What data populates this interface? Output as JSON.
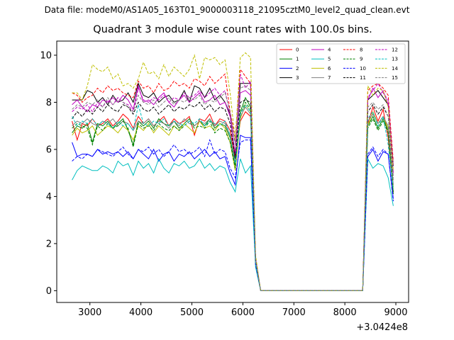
{
  "file_title": "Data file: modeM0/AS1A05_163T01_9000003118_21095cztM0_level2_quad_clean.evt",
  "chart_data": {
    "type": "line",
    "title": "Quadrant 3 module wise count rates with 100.0s bins.",
    "xlabel": "",
    "ylabel": "",
    "x_offset_label": "+3.0424e8",
    "xlim": [
      2350,
      9250
    ],
    "ylim": [
      -0.5,
      10.6
    ],
    "xticks": [
      3000,
      4000,
      5000,
      6000,
      7000,
      8000,
      9000
    ],
    "yticks": [
      0,
      2,
      4,
      6,
      8,
      10
    ],
    "legend_position": "top-right",
    "legend_columns": 4,
    "x": [
      2650,
      2750,
      2850,
      2950,
      3050,
      3150,
      3250,
      3350,
      3450,
      3550,
      3650,
      3750,
      3850,
      3950,
      4050,
      4150,
      4250,
      4350,
      4450,
      4550,
      4650,
      4750,
      4850,
      4950,
      5050,
      5150,
      5250,
      5350,
      5450,
      5550,
      5650,
      5750,
      5850,
      5950,
      6050,
      6150,
      6250,
      6350,
      6450,
      6550,
      6650,
      6750,
      6850,
      6950,
      7050,
      7150,
      7250,
      7350,
      7450,
      7550,
      7650,
      7750,
      7850,
      7950,
      8050,
      8150,
      8250,
      8350,
      8450,
      8550,
      8650,
      8750,
      8850,
      8950
    ],
    "series": [
      {
        "name": "0",
        "color": "#ff0000",
        "dash": "solid",
        "values": [
          7.2,
          6.4,
          7.1,
          7.0,
          7.3,
          7.0,
          7.1,
          7.3,
          7.0,
          7.2,
          7.5,
          7.3,
          6.9,
          7.4,
          7.1,
          7.3,
          7.0,
          7.2,
          7.4,
          7.0,
          7.3,
          7.1,
          7.2,
          7.4,
          6.6,
          7.3,
          7.2,
          7.5,
          7.0,
          7.3,
          7.2,
          6.8,
          5.6,
          7.2,
          7.6,
          7.4,
          1.3,
          0,
          0,
          0,
          0,
          0,
          0,
          0,
          0,
          0,
          0,
          0,
          0,
          0,
          0,
          0,
          0,
          0,
          0,
          0,
          0,
          0,
          7.1,
          7.8,
          7.2,
          7.7,
          6.5,
          4.2
        ]
      },
      {
        "name": "1",
        "color": "#008000",
        "dash": "solid",
        "values": [
          6.7,
          7.0,
          6.9,
          7.1,
          6.3,
          7.1,
          7.0,
          7.2,
          6.9,
          7.1,
          7.3,
          6.8,
          6.2,
          7.2,
          7.0,
          7.2,
          6.9,
          7.3,
          7.1,
          7.0,
          7.2,
          6.9,
          7.1,
          7.3,
          7.0,
          7.2,
          7.0,
          7.3,
          6.9,
          7.1,
          7.0,
          6.5,
          5.3,
          7.6,
          8.2,
          7.8,
          1.2,
          0,
          0,
          0,
          0,
          0,
          0,
          0,
          0,
          0,
          0,
          0,
          0,
          0,
          0,
          0,
          0,
          0,
          0,
          0,
          0,
          0,
          7.0,
          7.4,
          6.9,
          7.3,
          6.8,
          4.1
        ]
      },
      {
        "name": "2",
        "color": "#0000ff",
        "dash": "solid",
        "values": [
          6.3,
          5.7,
          5.8,
          5.8,
          5.7,
          6.0,
          5.8,
          5.9,
          5.8,
          5.9,
          5.7,
          5.9,
          5.6,
          6.0,
          5.8,
          5.6,
          6.0,
          5.5,
          5.8,
          5.9,
          5.5,
          5.8,
          5.7,
          5.9,
          5.6,
          5.8,
          6.0,
          5.7,
          5.9,
          5.6,
          5.7,
          5.0,
          4.5,
          6.6,
          6.5,
          6.5,
          1.1,
          0,
          0,
          0,
          0,
          0,
          0,
          0,
          0,
          0,
          0,
          0,
          0,
          0,
          0,
          0,
          0,
          0,
          0,
          0,
          0,
          0,
          5.7,
          6.0,
          5.5,
          5.9,
          5.8,
          3.9
        ]
      },
      {
        "name": "3",
        "color": "#000000",
        "dash": "solid",
        "values": [
          8.1,
          8.1,
          8.1,
          8.5,
          8.4,
          8.0,
          8.2,
          7.9,
          8.3,
          8.0,
          8.1,
          8.4,
          8.0,
          8.8,
          8.3,
          8.2,
          8.4,
          8.0,
          8.2,
          8.3,
          8.0,
          8.1,
          8.5,
          8.0,
          8.7,
          8.6,
          8.2,
          8.6,
          8.1,
          8.3,
          8.0,
          7.5,
          5.7,
          8.8,
          8.8,
          8.8,
          1.3,
          0,
          0,
          0,
          0,
          0,
          0,
          0,
          0,
          0,
          0,
          0,
          0,
          0,
          0,
          0,
          0,
          0,
          0,
          0,
          0,
          0,
          8.1,
          8.3,
          8.5,
          8.2,
          7.9,
          5.3
        ]
      },
      {
        "name": "4",
        "color": "#bf00bf",
        "dash": "solid",
        "values": [
          7.9,
          8.1,
          7.8,
          7.6,
          7.9,
          7.8,
          8.1,
          8.0,
          8.2,
          8.0,
          8.3,
          8.1,
          7.7,
          8.7,
          8.0,
          8.1,
          7.9,
          8.2,
          8.4,
          8.0,
          7.8,
          8.1,
          8.3,
          8.0,
          8.2,
          8.4,
          8.0,
          8.1,
          8.3,
          7.9,
          8.0,
          7.4,
          5.8,
          8.4,
          8.5,
          8.3,
          1.3,
          0,
          0,
          0,
          0,
          0,
          0,
          0,
          0,
          0,
          0,
          0,
          0,
          0,
          0,
          0,
          0,
          0,
          0,
          0,
          0,
          0,
          8.1,
          8.6,
          8.2,
          8.5,
          7.9,
          5.0
        ]
      },
      {
        "name": "5",
        "color": "#00bfbf",
        "dash": "solid",
        "values": [
          4.7,
          5.1,
          5.3,
          5.2,
          5.1,
          5.1,
          5.3,
          5.2,
          5.0,
          5.5,
          5.3,
          5.4,
          4.9,
          5.5,
          5.2,
          5.4,
          5.0,
          5.6,
          5.2,
          5.0,
          5.4,
          5.3,
          5.5,
          5.2,
          5.3,
          5.6,
          5.2,
          5.4,
          5.1,
          5.3,
          5.2,
          4.6,
          4.2,
          5.6,
          5.0,
          5.3,
          1.0,
          0,
          0,
          0,
          0,
          0,
          0,
          0,
          0,
          0,
          0,
          0,
          0,
          0,
          0,
          0,
          0,
          0,
          0,
          0,
          0,
          0,
          5.6,
          5.2,
          5.4,
          5.3,
          4.8,
          3.6
        ]
      },
      {
        "name": "6",
        "color": "#bfbf00",
        "dash": "solid",
        "values": [
          6.6,
          6.9,
          6.7,
          6.8,
          7.0,
          6.6,
          6.8,
          7.0,
          6.9,
          6.7,
          7.0,
          6.8,
          6.4,
          7.0,
          6.8,
          7.1,
          6.7,
          7.0,
          6.8,
          6.6,
          7.0,
          6.8,
          7.1,
          6.9,
          6.7,
          7.2,
          6.9,
          7.0,
          6.8,
          7.1,
          6.9,
          6.3,
          5.1,
          7.3,
          7.9,
          7.6,
          1.2,
          0,
          0,
          0,
          0,
          0,
          0,
          0,
          0,
          0,
          0,
          0,
          0,
          0,
          0,
          0,
          0,
          0,
          0,
          0,
          0,
          0,
          7.0,
          7.6,
          7.1,
          7.4,
          6.9,
          4.4
        ]
      },
      {
        "name": "7",
        "color": "#808080",
        "dash": "solid",
        "values": [
          7.0,
          7.2,
          7.1,
          7.3,
          7.1,
          7.0,
          7.2,
          7.1,
          7.3,
          7.0,
          7.2,
          7.1,
          6.8,
          7.2,
          7.1,
          7.3,
          7.0,
          7.2,
          7.1,
          6.9,
          7.2,
          7.0,
          7.3,
          7.1,
          7.0,
          7.2,
          7.1,
          7.3,
          7.0,
          7.2,
          7.1,
          6.6,
          5.4,
          7.4,
          7.8,
          7.5,
          1.2,
          0,
          0,
          0,
          0,
          0,
          0,
          0,
          0,
          0,
          0,
          0,
          0,
          0,
          0,
          0,
          0,
          0,
          0,
          0,
          0,
          0,
          7.2,
          7.5,
          7.1,
          7.4,
          7.0,
          4.5
        ]
      },
      {
        "name": "8",
        "color": "#ff0000",
        "dash": "dashed",
        "values": [
          8.4,
          8.3,
          8.0,
          8.2,
          8.3,
          8.6,
          8.4,
          8.7,
          8.5,
          8.6,
          8.4,
          8.3,
          8.2,
          8.9,
          8.6,
          8.7,
          8.4,
          8.8,
          8.5,
          8.6,
          8.9,
          8.7,
          8.8,
          8.6,
          9.0,
          8.9,
          8.7,
          9.1,
          8.8,
          9.0,
          9.2,
          7.6,
          6.5,
          9.4,
          9.1,
          8.8,
          1.4,
          0,
          0,
          0,
          0,
          0,
          0,
          0,
          0,
          0,
          0,
          0,
          0,
          0,
          0,
          0,
          0,
          0,
          0,
          0,
          0,
          0,
          8.5,
          8.7,
          8.8,
          8.6,
          8.3,
          5.5
        ]
      },
      {
        "name": "9",
        "color": "#008000",
        "dash": "dashed",
        "values": [
          6.9,
          7.1,
          7.0,
          6.9,
          6.2,
          7.0,
          6.8,
          7.1,
          6.9,
          7.0,
          7.2,
          6.9,
          6.1,
          7.1,
          6.9,
          7.0,
          6.8,
          7.1,
          6.9,
          6.8,
          7.0,
          6.8,
          7.0,
          7.2,
          6.9,
          7.0,
          6.9,
          7.2,
          6.7,
          6.9,
          6.8,
          6.3,
          5.2,
          7.5,
          8.0,
          7.7,
          1.2,
          0,
          0,
          0,
          0,
          0,
          0,
          0,
          0,
          0,
          0,
          0,
          0,
          0,
          0,
          0,
          0,
          0,
          0,
          0,
          0,
          0,
          6.9,
          7.3,
          6.8,
          7.2,
          6.7,
          4.2
        ]
      },
      {
        "name": "10",
        "color": "#0000ff",
        "dash": "dashed",
        "values": [
          5.5,
          5.7,
          5.6,
          5.8,
          5.7,
          6.0,
          5.9,
          5.8,
          5.7,
          5.9,
          6.1,
          5.8,
          5.6,
          6.0,
          5.9,
          6.1,
          5.8,
          6.0,
          5.7,
          5.9,
          6.2,
          5.9,
          6.0,
          5.8,
          5.9,
          6.1,
          5.7,
          6.4,
          5.8,
          6.0,
          5.9,
          5.2,
          4.8,
          6.3,
          6.4,
          6.4,
          1.1,
          0,
          0,
          0,
          0,
          0,
          0,
          0,
          0,
          0,
          0,
          0,
          0,
          0,
          0,
          0,
          0,
          0,
          0,
          0,
          0,
          0,
          5.8,
          6.1,
          5.7,
          6.0,
          5.8,
          3.8
        ]
      },
      {
        "name": "11",
        "color": "#000000",
        "dash": "dashed",
        "values": [
          7.3,
          7.6,
          7.4,
          7.7,
          7.5,
          7.8,
          7.6,
          7.9,
          7.7,
          7.6,
          7.9,
          7.8,
          7.5,
          8.0,
          7.7,
          7.6,
          7.8,
          7.5,
          7.7,
          7.9,
          7.6,
          7.8,
          7.7,
          7.9,
          7.8,
          8.0,
          7.7,
          7.9,
          7.6,
          7.8,
          7.7,
          7.1,
          5.6,
          8.0,
          8.1,
          8.0,
          1.3,
          0,
          0,
          0,
          0,
          0,
          0,
          0,
          0,
          0,
          0,
          0,
          0,
          0,
          0,
          0,
          0,
          0,
          0,
          0,
          0,
          0,
          7.6,
          7.9,
          7.5,
          7.8,
          7.4,
          4.8
        ]
      },
      {
        "name": "12",
        "color": "#bf00bf",
        "dash": "dashed",
        "values": [
          7.6,
          7.8,
          7.7,
          7.9,
          7.6,
          8.0,
          7.8,
          8.1,
          7.9,
          8.2,
          8.0,
          7.9,
          7.6,
          8.6,
          8.1,
          8.0,
          8.2,
          8.1,
          8.3,
          8.0,
          8.2,
          8.1,
          8.4,
          8.2,
          8.3,
          8.5,
          8.2,
          8.4,
          8.6,
          8.3,
          8.5,
          7.5,
          6.3,
          9.2,
          8.6,
          8.9,
          1.4,
          0,
          0,
          0,
          0,
          0,
          0,
          0,
          0,
          0,
          0,
          0,
          0,
          0,
          0,
          0,
          0,
          0,
          0,
          0,
          0,
          0,
          8.2,
          8.5,
          8.8,
          8.4,
          8.1,
          5.3
        ]
      },
      {
        "name": "13",
        "color": "#00bfbf",
        "dash": "dashed",
        "values": [
          7.4,
          7.0,
          7.2,
          7.1,
          7.3,
          7.0,
          7.2,
          7.1,
          6.9,
          7.2,
          7.0,
          7.1,
          6.8,
          7.9,
          7.1,
          7.0,
          7.2,
          7.1,
          7.3,
          7.0,
          7.2,
          7.1,
          7.0,
          7.2,
          7.1,
          7.3,
          7.0,
          7.2,
          7.1,
          7.0,
          7.2,
          6.6,
          5.4,
          7.5,
          7.9,
          7.6,
          1.2,
          0,
          0,
          0,
          0,
          0,
          0,
          0,
          0,
          0,
          0,
          0,
          0,
          0,
          0,
          0,
          0,
          0,
          0,
          0,
          0,
          0,
          7.3,
          7.6,
          7.0,
          7.4,
          6.2,
          4.3
        ]
      },
      {
        "name": "14",
        "color": "#bfbf00",
        "dash": "dashed",
        "values": [
          8.4,
          8.4,
          8.1,
          8.7,
          9.6,
          9.4,
          9.3,
          9.5,
          9.0,
          9.2,
          8.7,
          8.8,
          8.6,
          9.0,
          9.7,
          9.2,
          9.3,
          9.0,
          9.6,
          9.1,
          9.5,
          9.3,
          9.1,
          9.4,
          10.0,
          9.0,
          9.9,
          9.8,
          9.9,
          9.6,
          9.8,
          8.4,
          6.4,
          9.9,
          10.1,
          9.9,
          1.5,
          0,
          0,
          0,
          0,
          0,
          0,
          0,
          0,
          0,
          0,
          0,
          0,
          0,
          0,
          0,
          0,
          0,
          0,
          0,
          0,
          0,
          8.7,
          8.3,
          8.6,
          8.5,
          7.8,
          5.1
        ]
      },
      {
        "name": "15",
        "color": "#808080",
        "dash": "dashed",
        "values": [
          7.7,
          7.9,
          7.8,
          8.0,
          7.9,
          8.1,
          7.8,
          8.2,
          7.9,
          8.1,
          8.0,
          7.8,
          7.6,
          8.3,
          8.0,
          7.9,
          8.1,
          7.8,
          8.0,
          8.2,
          7.9,
          8.1,
          8.0,
          8.2,
          8.1,
          8.3,
          7.9,
          8.1,
          8.0,
          8.2,
          8.4,
          7.6,
          6.2,
          8.6,
          8.7,
          8.5,
          1.3,
          0,
          0,
          0,
          0,
          0,
          0,
          0,
          0,
          0,
          0,
          0,
          0,
          0,
          0,
          0,
          0,
          0,
          0,
          0,
          0,
          0,
          7.8,
          8.0,
          7.7,
          7.9,
          7.4,
          4.7
        ]
      }
    ]
  }
}
